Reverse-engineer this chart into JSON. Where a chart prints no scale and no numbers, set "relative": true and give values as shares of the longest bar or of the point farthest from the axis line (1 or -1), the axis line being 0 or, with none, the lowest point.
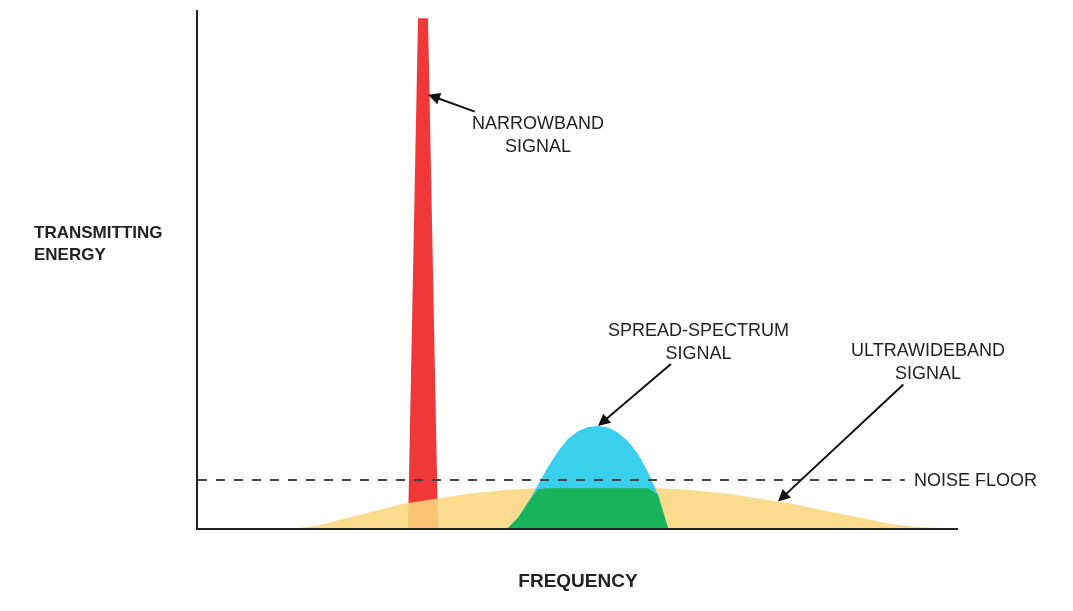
{
  "chart_data": {
    "type": "area",
    "relative": true,
    "xlabel": "FREQUENCY",
    "ylabel": "TRANSMITTING ENERGY",
    "categories": [
      null,
      null,
      null,
      null,
      null,
      null,
      null,
      null,
      null,
      null,
      null,
      null,
      null,
      null,
      null,
      null,
      null,
      null,
      null,
      null,
      null,
      null,
      null,
      null,
      null,
      null,
      null,
      null,
      null,
      null,
      null,
      null,
      null,
      null,
      null,
      null,
      null,
      null,
      null,
      null,
      null,
      null,
      null,
      null,
      null,
      null,
      null,
      null,
      null,
      null,
      null,
      null,
      null,
      null,
      null,
      null,
      null,
      null,
      null,
      null,
      null,
      null,
      null,
      null,
      null,
      null,
      null,
      null,
      null,
      null,
      null,
      null,
      null,
      null,
      null,
      null,
      null
    ],
    "series": [
      {
        "name": "NARROWBAND SIGNAL",
        "color": "#ee1c1c",
        "values": [
          null,
          null,
          null,
          null,
          null,
          null,
          null,
          null,
          null,
          null,
          null,
          null,
          null,
          null,
          null,
          null,
          null,
          null,
          null,
          null,
          null,
          0,
          1,
          1,
          0,
          null,
          null,
          null,
          null,
          null,
          null,
          null,
          null,
          null,
          null,
          null,
          null,
          null,
          null,
          null,
          null,
          null,
          null,
          null,
          null,
          null,
          null,
          null,
          null,
          null,
          null,
          null,
          null,
          null,
          null,
          null,
          null,
          null,
          null,
          null,
          null,
          null,
          null,
          null,
          null,
          null,
          null,
          null,
          null,
          null,
          null,
          null,
          null,
          null,
          null,
          null,
          null
        ]
      },
      {
        "name": "ULTRAWIDEBAND SIGNAL",
        "color": "#fbd77e",
        "values": [
          null,
          null,
          null,
          null,
          null,
          null,
          null,
          null,
          null,
          null,
          0,
          0.002,
          0.005,
          0.01,
          0.015,
          0.02,
          0.025,
          0.03,
          0.035,
          0.04,
          0.045,
          0.049,
          0.052,
          0.055,
          0.058,
          0.061,
          0.064,
          0.067,
          0.069,
          0.071,
          0.073,
          0.075,
          0.076,
          0.077,
          0.078,
          0.079,
          0.079,
          0.08,
          0.08,
          0.08,
          0.08,
          0.08,
          0.08,
          0.08,
          0.079,
          0.079,
          0.078,
          0.077,
          0.076,
          0.075,
          0.073,
          0.071,
          0.069,
          0.067,
          0.064,
          0.061,
          0.058,
          0.055,
          0.052,
          0.049,
          0.045,
          0.041,
          0.037,
          0.033,
          0.029,
          0.025,
          0.021,
          0.017,
          0.013,
          0.009,
          0.006,
          0.004,
          0.002,
          0.001,
          0,
          null,
          null
        ]
      },
      {
        "name": "SPREAD-SPECTRUM SIGNAL",
        "color": "#1ec8ea",
        "values": [
          null,
          null,
          null,
          null,
          null,
          null,
          null,
          null,
          null,
          null,
          null,
          null,
          null,
          null,
          null,
          null,
          null,
          null,
          null,
          null,
          null,
          null,
          null,
          null,
          null,
          null,
          null,
          null,
          null,
          null,
          null,
          0,
          0.02,
          0.05,
          0.085,
          0.12,
          0.15,
          0.175,
          0.19,
          0.198,
          0.2,
          0.197,
          0.187,
          0.17,
          0.145,
          0.11,
          0.065,
          0,
          null,
          null,
          null,
          null,
          null,
          null,
          null,
          null,
          null,
          null,
          null,
          null,
          null,
          null,
          null,
          null,
          null,
          null,
          null,
          null,
          null,
          null,
          null,
          null,
          null,
          null,
          null,
          null,
          null
        ]
      },
      {
        "color": "#12b04a",
        "values": [
          null,
          null,
          null,
          null,
          null,
          null,
          null,
          null,
          null,
          null,
          null,
          null,
          null,
          null,
          null,
          null,
          null,
          null,
          null,
          null,
          null,
          null,
          null,
          null,
          null,
          null,
          null,
          null,
          null,
          null,
          null,
          0,
          0.02,
          0.05,
          0.076,
          0.078,
          0.078,
          0.078,
          0.078,
          0.078,
          0.078,
          0.078,
          0.078,
          0.078,
          0.078,
          0.078,
          0.065,
          0,
          null,
          null,
          null,
          null,
          null,
          null,
          null,
          null,
          null,
          null,
          null,
          null,
          null,
          null,
          null,
          null,
          null,
          null,
          null,
          null,
          null,
          null,
          null,
          null,
          null,
          null,
          null,
          null,
          null
        ]
      }
    ],
    "ref_lines": [
      {
        "axis": "y",
        "value": 0.094,
        "label": "NOISE FLOOR",
        "color": "#444444",
        "line_style": "dashed"
      }
    ]
  }
}
